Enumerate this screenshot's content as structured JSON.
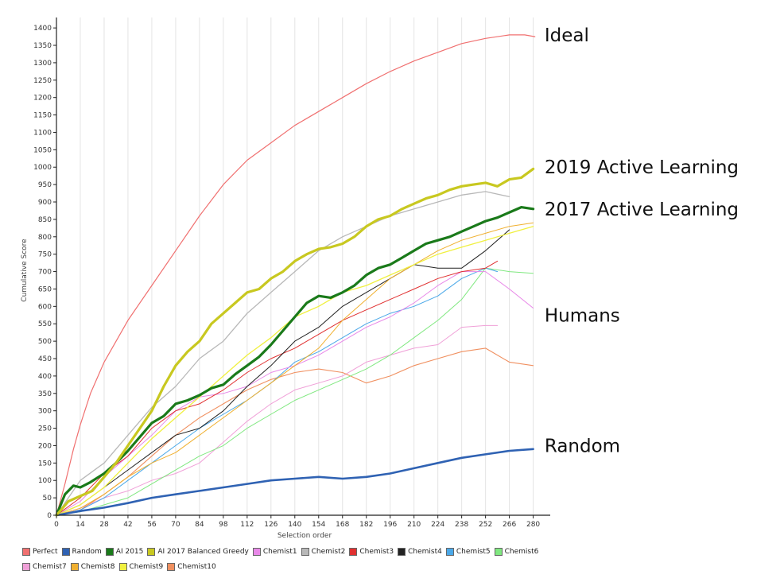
{
  "chart_data": {
    "type": "line",
    "xlabel": "Selection order",
    "ylabel": "Cumulative Score",
    "xlim": [
      0,
      290
    ],
    "ylim": [
      0,
      1430
    ],
    "xticks": [
      0,
      14,
      28,
      42,
      56,
      70,
      84,
      98,
      112,
      126,
      140,
      154,
      168,
      182,
      196,
      210,
      224,
      238,
      252,
      266,
      280
    ],
    "yticks": [
      0,
      50,
      100,
      150,
      200,
      250,
      300,
      350,
      400,
      450,
      500,
      550,
      600,
      650,
      700,
      750,
      800,
      850,
      900,
      950,
      1000,
      1050,
      1100,
      1150,
      1200,
      1250,
      1300,
      1350,
      1400
    ],
    "grid": "vertical",
    "legend_position": "bottom",
    "annotations": [
      {
        "text": "Ideal",
        "x": 282,
        "y": 1380
      },
      {
        "text": "2019 Active Learning",
        "x": 282,
        "y": 1000
      },
      {
        "text": "2017 Active Learning",
        "x": 282,
        "y": 880
      },
      {
        "text": "Humans",
        "x": 282,
        "y": 575
      },
      {
        "text": "Random",
        "x": 282,
        "y": 200
      }
    ],
    "series": [
      {
        "name": "Perfect",
        "color": "#f07070",
        "width": 1.2,
        "x": [
          0,
          5,
          10,
          14,
          20,
          28,
          42,
          56,
          70,
          84,
          98,
          112,
          126,
          140,
          154,
          168,
          182,
          196,
          210,
          224,
          238,
          252,
          266,
          275,
          281
        ],
        "y": [
          0,
          90,
          190,
          260,
          350,
          440,
          560,
          660,
          760,
          860,
          950,
          1020,
          1070,
          1120,
          1160,
          1200,
          1240,
          1275,
          1305,
          1330,
          1355,
          1370,
          1380,
          1380,
          1375
        ]
      },
      {
        "name": "Random",
        "color": "#2f62b3",
        "width": 2.6,
        "x": [
          0,
          14,
          28,
          42,
          56,
          70,
          84,
          98,
          112,
          126,
          140,
          154,
          168,
          182,
          196,
          210,
          224,
          238,
          252,
          266,
          280
        ],
        "y": [
          0,
          12,
          22,
          35,
          50,
          60,
          70,
          80,
          90,
          100,
          105,
          110,
          105,
          110,
          120,
          135,
          150,
          165,
          175,
          185,
          190
        ]
      },
      {
        "name": "AI 2015",
        "color": "#1a7a1a",
        "width": 3.2,
        "x": [
          0,
          5,
          10,
          14,
          20,
          28,
          35,
          42,
          49,
          56,
          63,
          70,
          77,
          84,
          91,
          98,
          105,
          112,
          119,
          126,
          133,
          140,
          147,
          154,
          161,
          168,
          175,
          182,
          189,
          196,
          203,
          210,
          217,
          224,
          231,
          238,
          245,
          252,
          259,
          266,
          273,
          280
        ],
        "y": [
          0,
          60,
          85,
          80,
          95,
          120,
          150,
          185,
          225,
          265,
          285,
          320,
          330,
          345,
          365,
          375,
          405,
          430,
          455,
          490,
          530,
          570,
          610,
          630,
          625,
          640,
          660,
          690,
          710,
          720,
          740,
          760,
          780,
          790,
          800,
          815,
          830,
          845,
          855,
          870,
          885,
          880
        ]
      },
      {
        "name": "AI 2017 Balanced Greedy",
        "color": "#c8c820",
        "width": 3.2,
        "x": [
          0,
          7,
          14,
          21,
          28,
          35,
          42,
          49,
          56,
          63,
          70,
          77,
          84,
          91,
          98,
          105,
          112,
          119,
          126,
          133,
          140,
          147,
          154,
          161,
          168,
          175,
          182,
          189,
          196,
          203,
          210,
          217,
          224,
          231,
          238,
          245,
          252,
          259,
          266,
          273,
          280
        ],
        "y": [
          0,
          40,
          55,
          70,
          110,
          150,
          200,
          250,
          300,
          370,
          430,
          470,
          500,
          550,
          580,
          610,
          640,
          650,
          680,
          700,
          730,
          750,
          765,
          770,
          780,
          800,
          830,
          850,
          860,
          880,
          895,
          910,
          920,
          935,
          945,
          950,
          955,
          945,
          965,
          970,
          995
        ]
      },
      {
        "name": "Chemist1",
        "color": "#e888e8",
        "width": 1,
        "x": [
          0,
          14,
          28,
          42,
          56,
          70,
          84,
          98,
          112,
          126,
          140,
          154,
          168,
          182,
          196,
          210,
          224,
          238,
          252,
          266,
          280
        ],
        "y": [
          0,
          40,
          110,
          170,
          230,
          300,
          340,
          350,
          370,
          410,
          430,
          460,
          500,
          540,
          570,
          610,
          660,
          700,
          700,
          650,
          595
        ]
      },
      {
        "name": "Chemist2",
        "color": "#b8b8b8",
        "width": 1.3,
        "x": [
          0,
          14,
          28,
          42,
          56,
          70,
          84,
          98,
          112,
          126,
          140,
          154,
          168,
          182,
          196,
          210,
          224,
          238,
          252,
          266
        ],
        "y": [
          0,
          100,
          150,
          230,
          310,
          370,
          450,
          500,
          580,
          640,
          700,
          760,
          800,
          830,
          860,
          880,
          900,
          920,
          930,
          915
        ]
      },
      {
        "name": "Chemist3",
        "color": "#e03030",
        "width": 1,
        "x": [
          0,
          14,
          28,
          42,
          56,
          70,
          84,
          98,
          112,
          126,
          140,
          154,
          168,
          182,
          196,
          210,
          224,
          238,
          252,
          259
        ],
        "y": [
          0,
          50,
          120,
          170,
          250,
          300,
          320,
          360,
          410,
          450,
          480,
          520,
          560,
          590,
          620,
          650,
          680,
          700,
          710,
          730
        ]
      },
      {
        "name": "Chemist4",
        "color": "#222222",
        "width": 1,
        "x": [
          0,
          14,
          28,
          42,
          56,
          70,
          84,
          98,
          112,
          126,
          140,
          154,
          168,
          182,
          196,
          210,
          224,
          238,
          252,
          266
        ],
        "y": [
          0,
          30,
          80,
          130,
          180,
          230,
          250,
          300,
          370,
          430,
          500,
          540,
          600,
          640,
          680,
          720,
          710,
          710,
          760,
          820
        ]
      },
      {
        "name": "Chemist5",
        "color": "#4aa8e8",
        "width": 1,
        "x": [
          0,
          14,
          28,
          42,
          56,
          70,
          84,
          98,
          112,
          126,
          140,
          154,
          168,
          182,
          196,
          210,
          224,
          238,
          252,
          259
        ],
        "y": [
          0,
          15,
          50,
          100,
          150,
          200,
          250,
          290,
          330,
          380,
          440,
          470,
          510,
          550,
          580,
          600,
          630,
          680,
          710,
          700
        ]
      },
      {
        "name": "Chemist6",
        "color": "#80e880",
        "width": 1,
        "x": [
          0,
          14,
          28,
          42,
          56,
          70,
          84,
          98,
          112,
          126,
          140,
          154,
          168,
          182,
          196,
          210,
          224,
          238,
          252,
          266,
          280
        ],
        "y": [
          0,
          10,
          30,
          50,
          90,
          130,
          170,
          200,
          250,
          290,
          330,
          360,
          390,
          420,
          460,
          510,
          560,
          620,
          710,
          700,
          695
        ]
      },
      {
        "name": "Chemist7",
        "color": "#f0a0d8",
        "width": 1,
        "x": [
          0,
          14,
          28,
          42,
          56,
          70,
          84,
          98,
          112,
          126,
          140,
          154,
          168,
          182,
          196,
          210,
          224,
          238,
          252,
          259
        ],
        "y": [
          0,
          20,
          50,
          70,
          100,
          120,
          150,
          210,
          270,
          320,
          360,
          380,
          400,
          440,
          460,
          480,
          490,
          540,
          545,
          545
        ]
      },
      {
        "name": "Chemist8",
        "color": "#f0b030",
        "width": 1,
        "x": [
          0,
          14,
          28,
          42,
          56,
          70,
          84,
          98,
          112,
          126,
          140,
          154,
          168,
          182,
          196,
          210,
          224,
          238,
          252,
          266,
          280
        ],
        "y": [
          0,
          20,
          60,
          110,
          150,
          180,
          230,
          280,
          330,
          380,
          430,
          480,
          560,
          620,
          680,
          720,
          760,
          790,
          810,
          830,
          840
        ]
      },
      {
        "name": "Chemist9",
        "color": "#f0f040",
        "width": 1.3,
        "x": [
          0,
          14,
          28,
          42,
          56,
          70,
          84,
          98,
          112,
          126,
          140,
          154,
          168,
          182,
          196,
          210,
          224,
          238,
          252,
          266,
          280
        ],
        "y": [
          0,
          30,
          80,
          150,
          220,
          280,
          340,
          400,
          460,
          510,
          570,
          600,
          640,
          660,
          690,
          720,
          750,
          770,
          790,
          810,
          830
        ]
      },
      {
        "name": "Chemist10",
        "color": "#f09060",
        "width": 1.1,
        "x": [
          0,
          14,
          28,
          42,
          56,
          70,
          84,
          98,
          112,
          126,
          140,
          154,
          168,
          182,
          196,
          210,
          224,
          238,
          252,
          266,
          280
        ],
        "y": [
          0,
          15,
          60,
          110,
          170,
          230,
          280,
          320,
          360,
          390,
          410,
          420,
          410,
          380,
          400,
          430,
          450,
          470,
          480,
          440,
          430
        ]
      }
    ]
  }
}
